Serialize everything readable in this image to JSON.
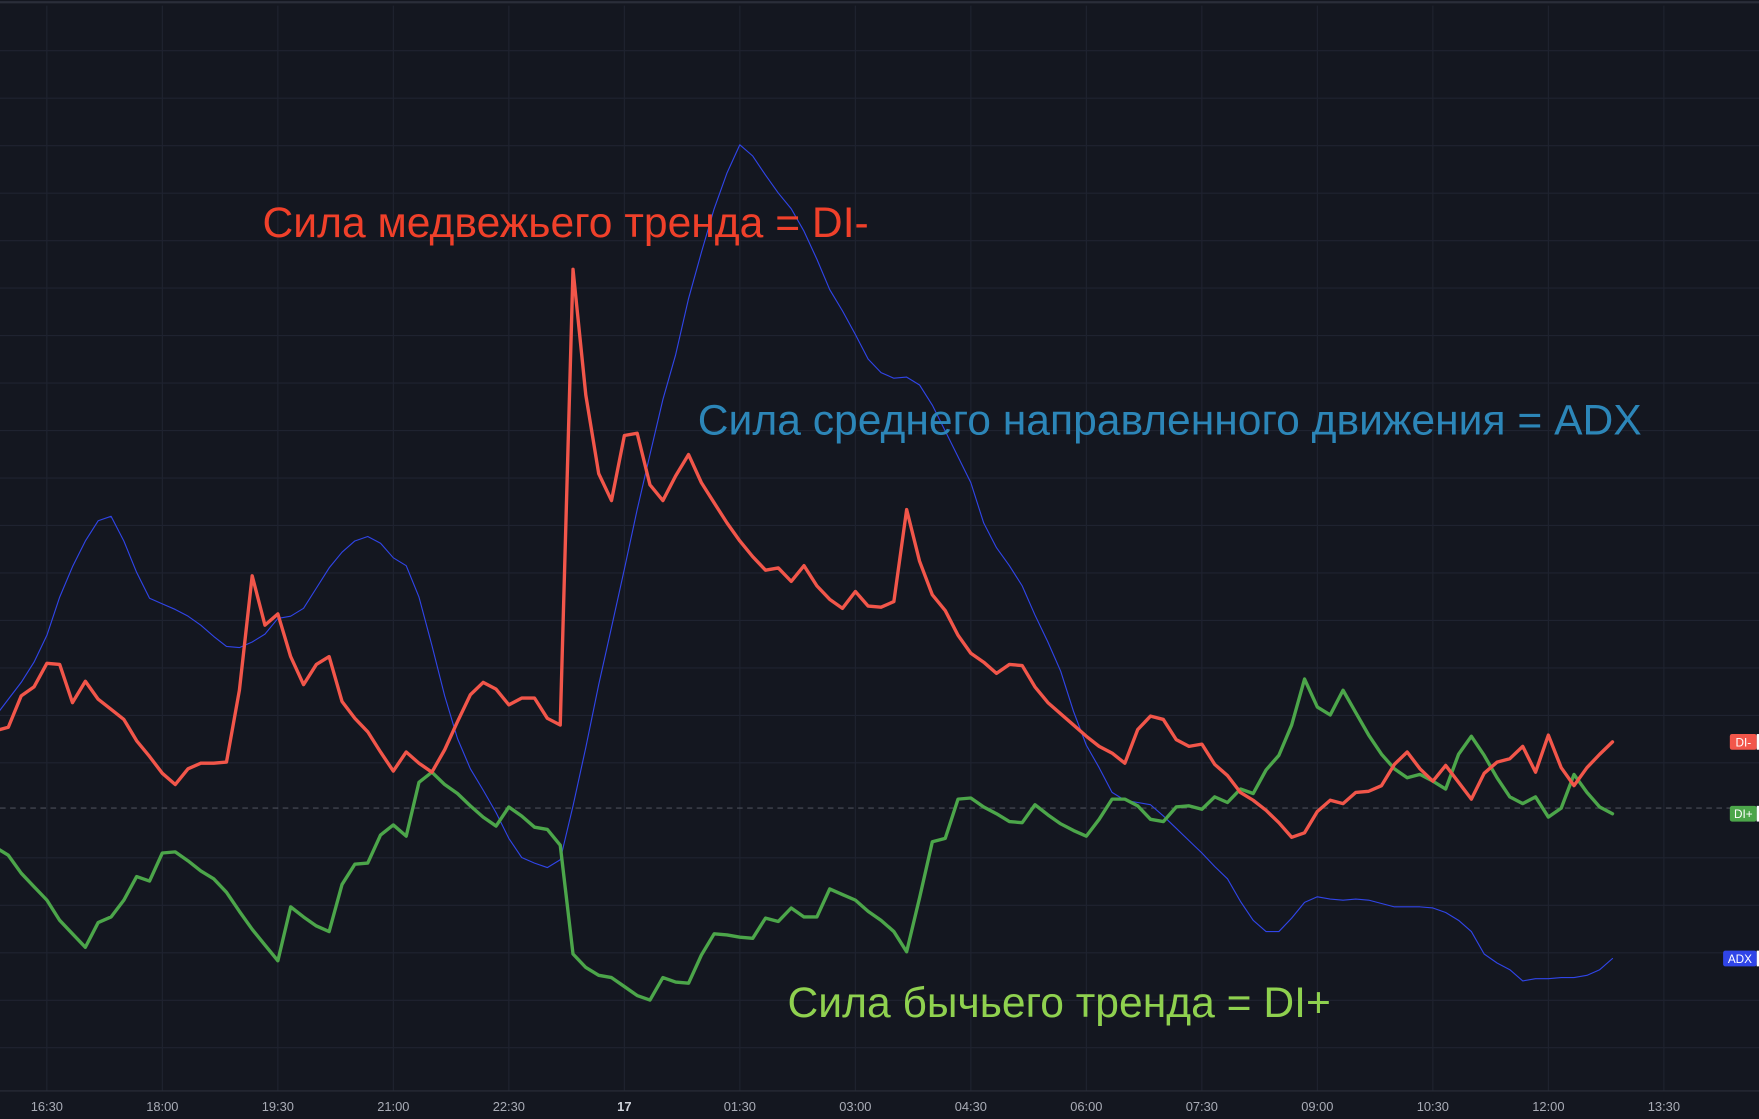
{
  "chart_data": {
    "type": "line",
    "title": "",
    "xlabel": "",
    "ylabel": "",
    "x_start": "15:50",
    "x_step_minutes": 10,
    "ylim": [
      -2.7,
      100
    ],
    "grid": true,
    "reference_line": 25,
    "x_ticks": [
      {
        "label": "16:30",
        "bar": 4,
        "bold": false
      },
      {
        "label": "18:00",
        "bar": 13,
        "bold": false
      },
      {
        "label": "19:30",
        "bar": 22,
        "bold": false
      },
      {
        "label": "21:00",
        "bar": 31,
        "bold": false
      },
      {
        "label": "22:30",
        "bar": 40,
        "bold": false
      },
      {
        "label": "17",
        "bar": 49,
        "bold": true
      },
      {
        "label": "01:30",
        "bar": 58,
        "bold": false
      },
      {
        "label": "03:00",
        "bar": 67,
        "bold": false
      },
      {
        "label": "04:30",
        "bar": 76,
        "bold": false
      },
      {
        "label": "06:00",
        "bar": 85,
        "bold": false
      },
      {
        "label": "07:30",
        "bar": 94,
        "bold": false
      },
      {
        "label": "09:00",
        "bar": 103,
        "bold": false
      },
      {
        "label": "10:30",
        "bar": 112,
        "bold": false
      },
      {
        "label": "12:00",
        "bar": 121,
        "bold": false
      },
      {
        "label": "13:30",
        "bar": 130,
        "bold": false
      }
    ],
    "series": [
      {
        "name": "DI-",
        "color": "#f2564a",
        "width": 3,
        "values": [
          31.9,
          32.2,
          35.0,
          35.8,
          37.9,
          37.8,
          34.4,
          36.3,
          34.7,
          33.8,
          32.9,
          31.0,
          29.6,
          28.1,
          27.1,
          28.5,
          29.0,
          29.0,
          29.1,
          35.5,
          45.7,
          41.3,
          42.3,
          38.5,
          36.0,
          37.8,
          38.5,
          34.5,
          33.0,
          31.8,
          30.0,
          28.3,
          30.0,
          29.0,
          28.2,
          30.2,
          32.7,
          35.1,
          36.2,
          35.6,
          34.2,
          34.8,
          34.8,
          33.0,
          32.4,
          73.0,
          61.8,
          54.8,
          52.4,
          58.2,
          58.4,
          53.8,
          52.4,
          54.6,
          56.5,
          54.0,
          52.2,
          50.4,
          48.8,
          47.4,
          46.2,
          46.4,
          45.2,
          46.6,
          44.8,
          43.6,
          42.8,
          44.3,
          43.0,
          42.9,
          43.4,
          51.6,
          47.0,
          44.0,
          42.6,
          40.4,
          38.8,
          38.0,
          37.0,
          37.8,
          37.7,
          35.8,
          34.4,
          33.4,
          32.4,
          31.4,
          30.5,
          29.9,
          29.0,
          32.0,
          33.2,
          32.9,
          31.1,
          30.5,
          30.7,
          28.9,
          27.9,
          26.4,
          25.7,
          24.8,
          23.7,
          22.4,
          22.8,
          24.7,
          25.7,
          25.4,
          26.4,
          26.5,
          27.0,
          28.9,
          30.0,
          28.5,
          27.4,
          28.8,
          27.3,
          25.8,
          28.1,
          29.1,
          29.4,
          30.5,
          28.2,
          31.5,
          28.6,
          27.0,
          28.6,
          29.8,
          30.9
        ]
      },
      {
        "name": "DI+",
        "color": "#4ca64a",
        "width": 3,
        "values": [
          21.5,
          20.8,
          19.2,
          18.0,
          16.8,
          15.0,
          13.8,
          12.6,
          14.8,
          15.3,
          16.8,
          18.9,
          18.5,
          21.0,
          21.1,
          20.3,
          19.4,
          18.7,
          17.5,
          15.8,
          14.2,
          12.8,
          11.4,
          16.2,
          15.3,
          14.5,
          14.0,
          18.2,
          20.0,
          20.1,
          22.6,
          23.5,
          22.5,
          27.3,
          28.2,
          27.1,
          26.3,
          25.2,
          24.2,
          23.4,
          25.1,
          24.3,
          23.3,
          23.1,
          21.7,
          12.0,
          10.8,
          10.1,
          9.9,
          9.1,
          8.3,
          7.9,
          9.9,
          9.5,
          9.4,
          11.9,
          13.8,
          13.7,
          13.5,
          13.4,
          15.2,
          14.9,
          16.1,
          15.3,
          15.3,
          17.8,
          17.3,
          16.8,
          15.8,
          15.0,
          14.0,
          12.2,
          17.0,
          22.0,
          22.3,
          25.8,
          25.9,
          25.1,
          24.5,
          23.8,
          23.7,
          25.3,
          24.4,
          23.6,
          23.0,
          22.5,
          24.0,
          25.8,
          25.8,
          25.2,
          24.0,
          23.8,
          25.1,
          25.2,
          24.9,
          26.0,
          25.5,
          26.7,
          26.3,
          28.4,
          29.7,
          32.4,
          36.5,
          34.0,
          33.3,
          35.5,
          33.5,
          31.5,
          29.8,
          28.5,
          27.7,
          28.0,
          27.4,
          26.7,
          29.8,
          31.4,
          29.7,
          27.7,
          26.0,
          25.4,
          26.0,
          24.2,
          25.0,
          28.0,
          26.4,
          25.1,
          24.5
        ]
      },
      {
        "name": "ADX",
        "color": "#3045e8",
        "width": 1,
        "values": [
          33.2,
          34.7,
          36.2,
          38.0,
          40.4,
          43.8,
          46.5,
          48.8,
          50.6,
          51.0,
          48.8,
          46.0,
          43.7,
          43.2,
          42.7,
          42.1,
          41.3,
          40.3,
          39.4,
          39.3,
          39.8,
          40.5,
          41.9,
          42.1,
          42.8,
          44.6,
          46.4,
          47.8,
          48.8,
          49.2,
          48.6,
          47.3,
          46.6,
          43.8,
          39.5,
          35.0,
          31.2,
          28.5,
          26.6,
          24.6,
          22.3,
          20.6,
          20.1,
          19.7,
          20.4,
          25.2,
          30.4,
          36.0,
          41.1,
          46.3,
          51.6,
          56.5,
          61.4,
          65.4,
          70.4,
          74.5,
          78.4,
          81.6,
          84.1,
          83.1,
          81.4,
          79.8,
          78.4,
          76.4,
          73.9,
          71.2,
          69.3,
          67.2,
          65.0,
          63.8,
          63.3,
          63.4,
          62.7,
          60.9,
          58.6,
          56.3,
          54.0,
          50.4,
          48.2,
          46.6,
          44.8,
          42.2,
          39.8,
          37.2,
          33.6,
          30.6,
          28.6,
          26.4,
          25.7,
          25.5,
          25.3,
          24.3,
          23.2,
          22.1,
          21.0,
          19.8,
          18.7,
          16.7,
          15.0,
          14.0,
          14.0,
          15.2,
          16.6,
          17.1,
          16.9,
          16.8,
          16.9,
          16.8,
          16.5,
          16.2,
          16.2,
          16.2,
          16.1,
          15.7,
          15.0,
          14.0,
          12.0,
          11.2,
          10.6,
          9.6,
          9.8,
          9.8,
          9.9,
          9.9,
          10.1,
          10.6,
          11.6
        ]
      }
    ],
    "legend": [
      {
        "label": "DI-",
        "color": "#f2564a"
      },
      {
        "label": "DI+",
        "color": "#4ca64a"
      },
      {
        "label": "ADX",
        "color": "#3045e8"
      }
    ],
    "legend_placement": "right price scale",
    "annotations": [
      {
        "text": "Сила медвежьего тренда = DI-",
        "color": "#f0402a"
      },
      {
        "text": "Сила среднего направленного движения = ADX",
        "color": "#2c86b8"
      },
      {
        "text": "Сила бычьего тренда = DI+",
        "color": "#8fd14f"
      }
    ]
  }
}
